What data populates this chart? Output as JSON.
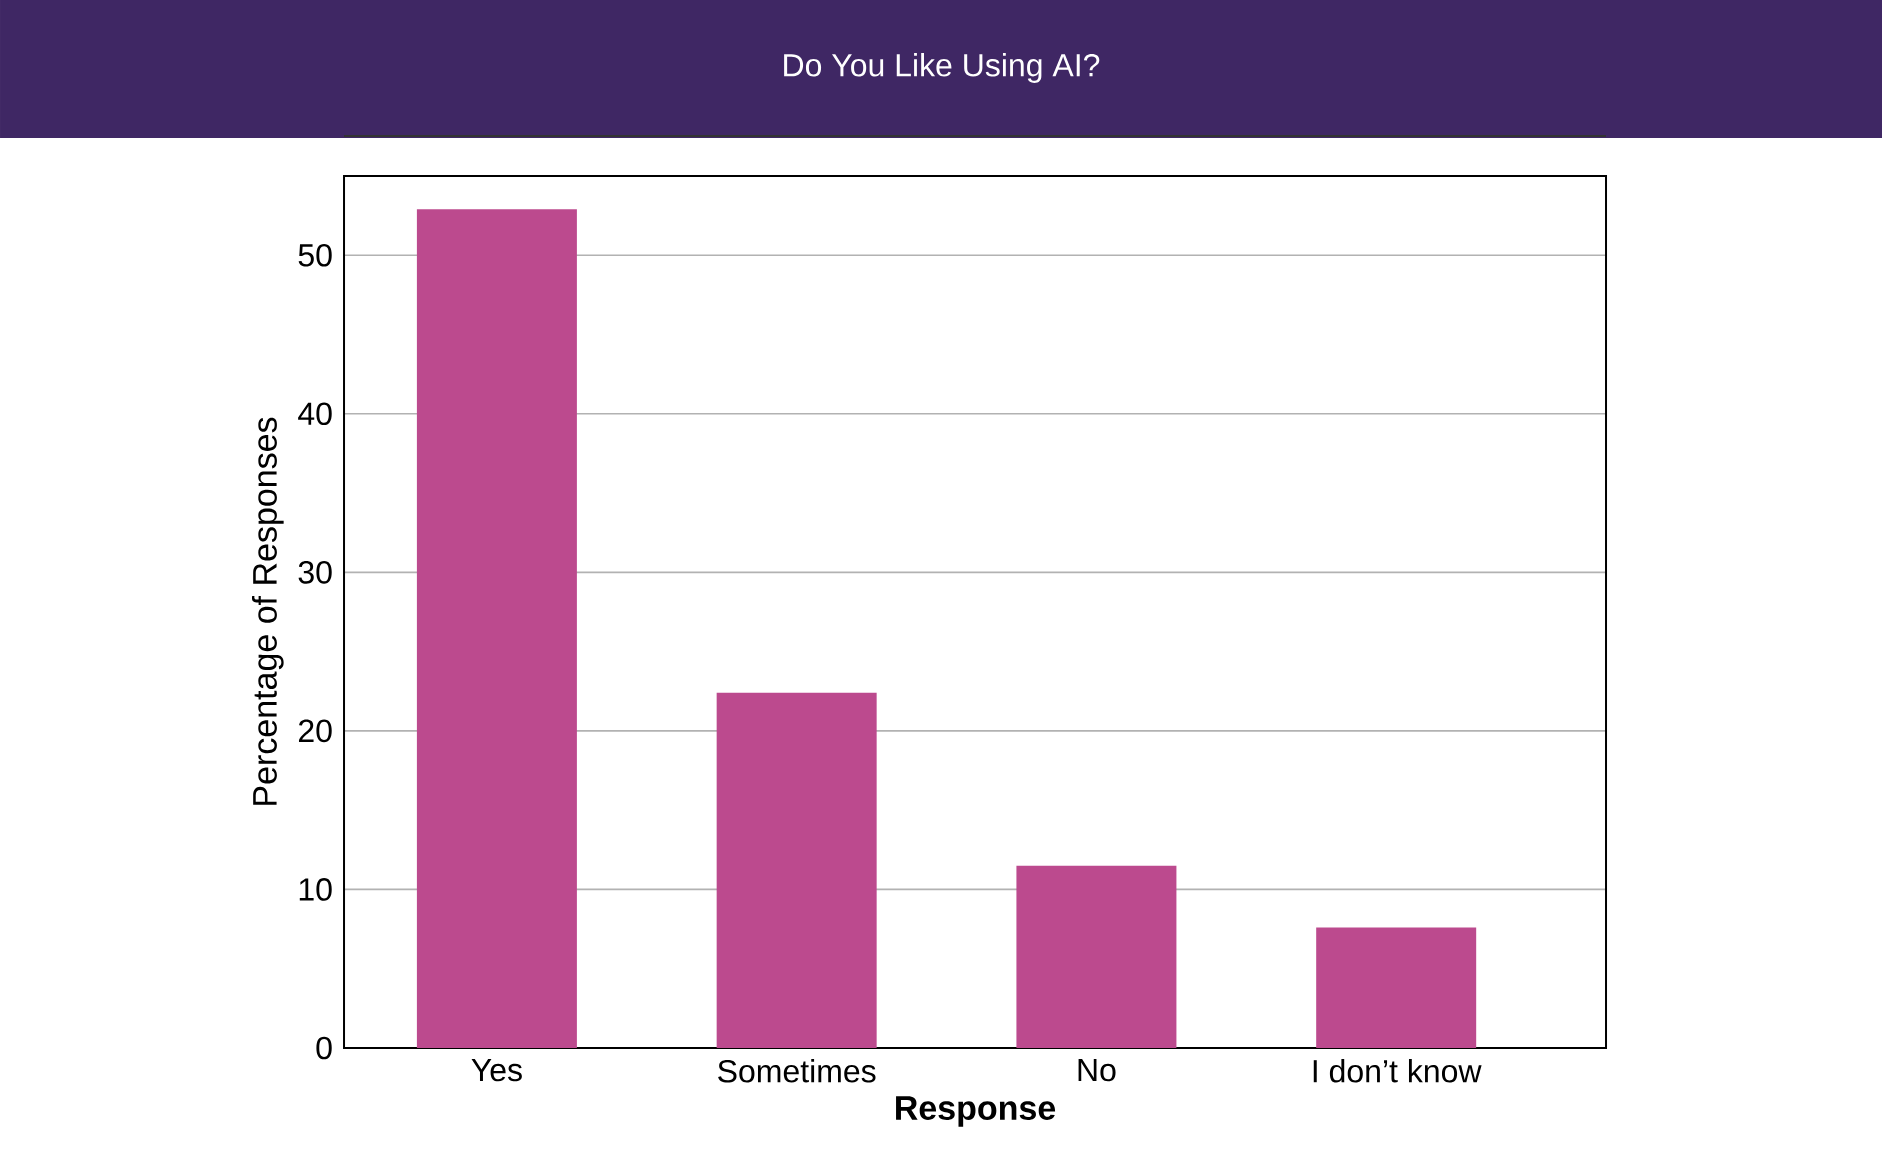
{
  "chart_data": {
    "type": "bar",
    "title": "Do You Like Using AI?",
    "xlabel": "Response",
    "ylabel": "Percentage of Responses",
    "categories": [
      "Yes",
      "Sometimes",
      "No",
      "I don’t know"
    ],
    "values": [
      52.9,
      22.4,
      11.5,
      7.6
    ],
    "color": "#bc4a8e",
    "ylim": [
      0,
      55
    ],
    "yticks": [
      0,
      10,
      20,
      30,
      40,
      50
    ],
    "grid": "y"
  }
}
